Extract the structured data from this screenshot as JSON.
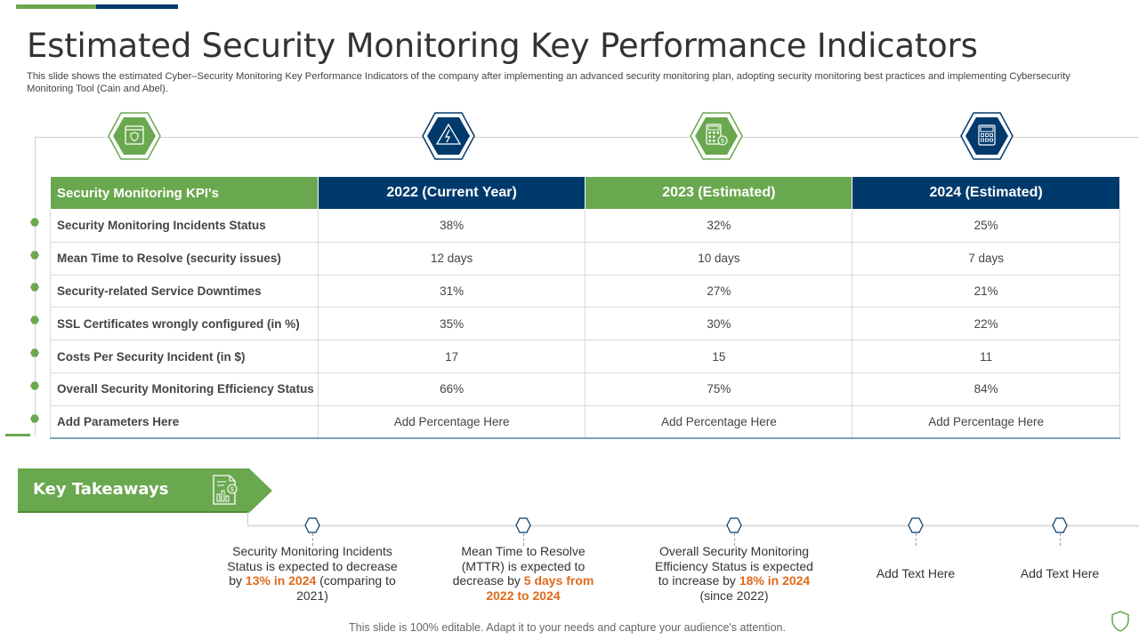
{
  "colors": {
    "green": "#6aa84f",
    "blue": "#003a6c",
    "highlight": "#e06a1b"
  },
  "slide": {
    "title": "Estimated Security Monitoring Key Performance Indicators",
    "subtitle": "This slide shows the estimated Cyber–Security Monitoring Key Performance Indicators of the company after implementing an advanced security monitoring plan, adopting security monitoring best practices and implementing Cybersecurity Monitoring Tool (Cain and Abel)."
  },
  "column_icons": [
    "shield-browser-icon",
    "lightning-icon",
    "calculator-dollar-icon",
    "calculator-icon"
  ],
  "table": {
    "headers": [
      "Security Monitoring KPI's",
      "2022 (Current Year)",
      "2023 (Estimated)",
      "2024 (Estimated)"
    ],
    "rows": [
      [
        "Security Monitoring Incidents Status",
        "38%",
        "32%",
        "25%"
      ],
      [
        "Mean Time to Resolve (security  issues)",
        "12 days",
        "10 days",
        "7 days"
      ],
      [
        "Security-related Service Downtimes",
        "31%",
        "27%",
        "21%"
      ],
      [
        "SSL Certificates  wrongly configured  (in %)",
        "35%",
        "30%",
        "22%"
      ],
      [
        "Costs  Per Security Incident (in $)",
        "17",
        "15",
        "11"
      ],
      [
        "Overall Security Monitoring Efficiency Status",
        "66%",
        "75%",
        "84%"
      ],
      [
        "Add Parameters Here",
        "Add Percentage Here",
        "Add Percentage Here",
        "Add Percentage Here"
      ]
    ]
  },
  "takeaways": {
    "label": "Key Takeaways",
    "items": [
      {
        "pre": "Security Monitoring Incidents Status is expected to decrease by ",
        "highlight": "13%  in 2024",
        "post": " (comparing to 2021)"
      },
      {
        "pre": "Mean Time to Resolve (MTTR) is expected to decrease by ",
        "highlight": "5 days from 2022 to 2024",
        "post": ""
      },
      {
        "pre": "Overall Security Monitoring Efficiency Status is expected to increase by ",
        "highlight": "18%  in 2024",
        "post": " (since 2022)"
      },
      {
        "pre": "Add Text Here",
        "highlight": "",
        "post": ""
      },
      {
        "pre": "Add Text Here",
        "highlight": "",
        "post": ""
      }
    ]
  },
  "footer": "This slide is 100% editable. Adapt it to your needs and capture your audience's attention."
}
